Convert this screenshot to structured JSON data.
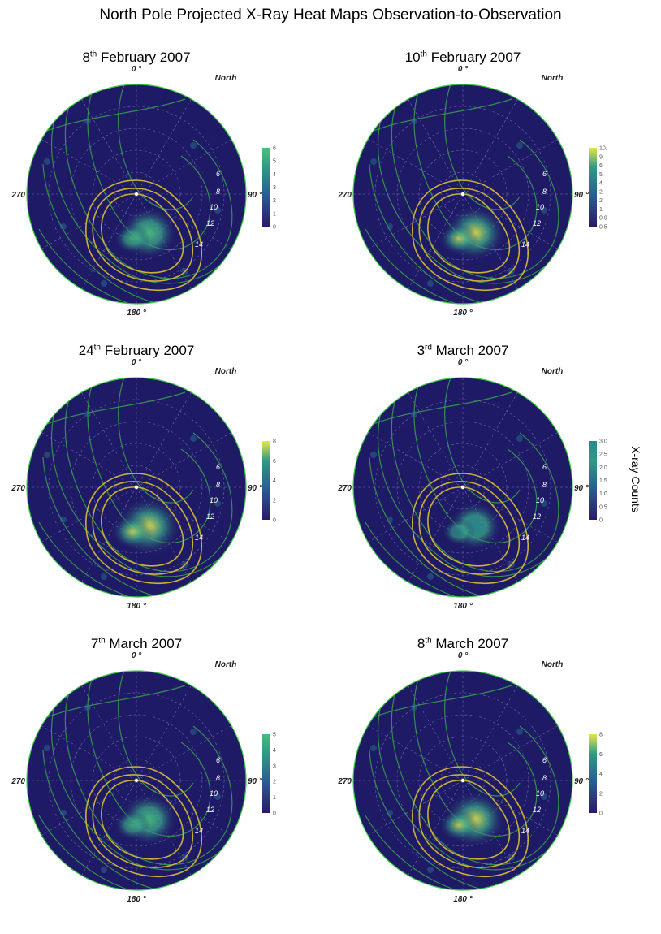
{
  "title": "North Pole Projected X-Ray Heat Maps Observation-to-Observation",
  "colorbar_label": "X-ray Counts",
  "colors": {
    "background": "#1f1a66",
    "rim": "#3ec94a",
    "contour_yellow": "#c9b03b",
    "contour_green": "#3aa24f",
    "grid": "#8c8cc8"
  },
  "axis_labels": {
    "top": "0 °",
    "right": "90 °",
    "bottom": "180 °",
    "left": "270",
    "north": "North"
  },
  "local_time_labels": [
    "6",
    "8",
    "10",
    "12",
    "14"
  ],
  "panels": [
    {
      "date_day": "8",
      "date_suffix": "th",
      "date_rest": " February 2007",
      "cbar_ticks": [
        "6",
        "5",
        "4",
        "3",
        "2",
        "1",
        "0"
      ],
      "cbar_max_color": "#49c27b",
      "intensity": 0.55
    },
    {
      "date_day": "10",
      "date_suffix": "th",
      "date_rest": " February 2007",
      "cbar_ticks": [
        "10.",
        "9.",
        "6",
        "5.",
        "4.",
        "2.",
        "2",
        "1.",
        "0.9",
        "0.5"
      ],
      "cbar_max_color": "#e3e34a",
      "intensity": 0.8
    },
    {
      "date_day": "24",
      "date_suffix": "th",
      "date_rest": " February 2007",
      "cbar_ticks": [
        "8",
        "6",
        "4",
        "2",
        "0"
      ],
      "cbar_max_color": "#e8e84d",
      "intensity": 1.0
    },
    {
      "date_day": "3",
      "date_suffix": "rd",
      "date_rest": " March 2007",
      "cbar_ticks": [
        "3.0",
        "2.5",
        "2.0",
        "1.5",
        "1.0",
        "0.5",
        "0"
      ],
      "cbar_max_color": "#27888f",
      "intensity": 0.3
    },
    {
      "date_day": "7",
      "date_suffix": "th",
      "date_rest": " March 2007",
      "cbar_ticks": [
        "5",
        "4",
        "3",
        "2",
        "1",
        "0"
      ],
      "cbar_max_color": "#45bd7d",
      "intensity": 0.55
    },
    {
      "date_day": "8",
      "date_suffix": "th",
      "date_rest": " March 2007",
      "cbar_ticks": [
        "8",
        "6",
        "4",
        "2",
        "0"
      ],
      "cbar_max_color": "#e4e44a",
      "intensity": 0.85
    }
  ],
  "chart_data": {
    "type": "heatmap",
    "title": "North Pole Projected X-Ray Heat Maps Observation-to-Observation",
    "colorbar_label": "X-ray Counts",
    "panels": [
      {
        "title": "8th February 2007",
        "colorbar_range": [
          0,
          6
        ]
      },
      {
        "title": "10th February 2007",
        "colorbar_range": [
          0.5,
          10
        ]
      },
      {
        "title": "24th February 2007",
        "colorbar_range": [
          0,
          8
        ]
      },
      {
        "title": "3rd March 2007",
        "colorbar_range": [
          0,
          3.0
        ]
      },
      {
        "title": "7th March 2007",
        "colorbar_range": [
          0,
          5
        ]
      },
      {
        "title": "8th March 2007",
        "colorbar_range": [
          0,
          8
        ]
      }
    ],
    "longitude_labels": [
      "0 °",
      "90 °",
      "180 °",
      "270"
    ],
    "local_time_contours": [
      "6",
      "8",
      "10",
      "12",
      "14"
    ],
    "grid": true
  }
}
